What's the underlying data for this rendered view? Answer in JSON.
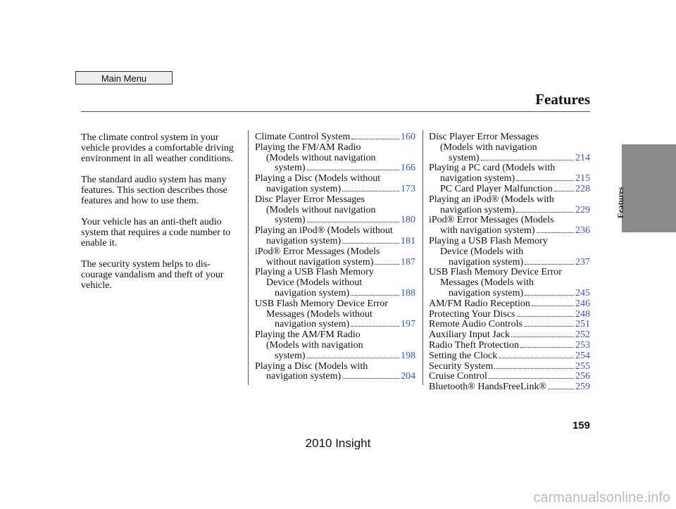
{
  "header": {
    "button": "Main Menu",
    "title": "Features"
  },
  "intro": [
    "The climate control system in your vehicle provides a comfortable driving environment in all weather conditions.",
    "The standard audio system has many features. This section describes those features and how to use them.",
    "Your vehicle has an anti-theft audio system that requires a code number to enable it.",
    "The security system helps to dis-courage vandalism and theft of your vehicle."
  ],
  "index": [
    [
      {
        "lines": [
          "Climate Control System"
        ],
        "page": "160"
      },
      {
        "lines": [
          "Playing the FM/AM Radio",
          "(Models without navigation",
          "system)"
        ],
        "page": "166"
      },
      {
        "lines": [
          "Playing a Disc (Models without",
          "navigation system)"
        ],
        "page": "173"
      },
      {
        "lines": [
          "Disc Player Error Messages",
          "(Models without navigation",
          "system)"
        ],
        "page": "180"
      },
      {
        "lines": [
          "Playing an iPod® (Models without",
          "navigation system)"
        ],
        "page": "181"
      },
      {
        "lines": [
          "iPod® Error Messages (Models",
          "without navigation system)"
        ],
        "page": "187"
      },
      {
        "lines": [
          "Playing a USB Flash Memory",
          "Device (Models without",
          "navigation system)"
        ],
        "page": "188"
      },
      {
        "lines": [
          "USB Flash Memory Device Error",
          "Messages (Models without",
          "navigation system)"
        ],
        "page": "197"
      },
      {
        "lines": [
          "Playing the AM/FM Radio",
          "(Models with navigation",
          "system)"
        ],
        "page": "198"
      },
      {
        "lines": [
          "Playing a Disc (Models with",
          "navigation system)"
        ],
        "page": "204"
      }
    ],
    [
      {
        "lines": [
          "Disc Player Error Messages",
          "(Models with navigation",
          "system)"
        ],
        "page": "214"
      },
      {
        "lines": [
          "Playing a PC card (Models with",
          "navigation system)"
        ],
        "page": "215",
        "sub": [
          {
            "lines": [
              "PC Card Player Malfunction"
            ],
            "page": "228"
          }
        ]
      },
      {
        "lines": [
          "Playing an iPod® (Models with",
          "navigation system)"
        ],
        "page": "229"
      },
      {
        "lines": [
          "iPod® Error Messages (Models",
          "with navigation system)"
        ],
        "page": "236"
      },
      {
        "lines": [
          "Playing a USB Flash Memory",
          "Device (Models with",
          "navigation system)"
        ],
        "page": "237"
      },
      {
        "lines": [
          "USB Flash Memory Device Error",
          "Messages (Models with",
          "navigation system)"
        ],
        "page": "245"
      },
      {
        "lines": [
          "AM/FM Radio Reception"
        ],
        "page": "246"
      },
      {
        "lines": [
          "Protecting Your Discs"
        ],
        "page": "248"
      },
      {
        "lines": [
          "Remote Audio Controls"
        ],
        "page": "251"
      },
      {
        "lines": [
          "Auxiliary Input Jack"
        ],
        "page": "252"
      },
      {
        "lines": [
          "Radio Theft Protection"
        ],
        "page": "253"
      },
      {
        "lines": [
          "Setting the Clock"
        ],
        "page": "254"
      },
      {
        "lines": [
          "Security System"
        ],
        "page": "255"
      },
      {
        "lines": [
          "Cruise Control"
        ],
        "page": "256"
      },
      {
        "lines": [
          "Bluetooth® HandsFreeLink®"
        ],
        "page": "259"
      }
    ]
  ],
  "side_tab": "Features",
  "page_number": "159",
  "footer": "2010 Insight",
  "watermark": "carmanualsonline.info"
}
